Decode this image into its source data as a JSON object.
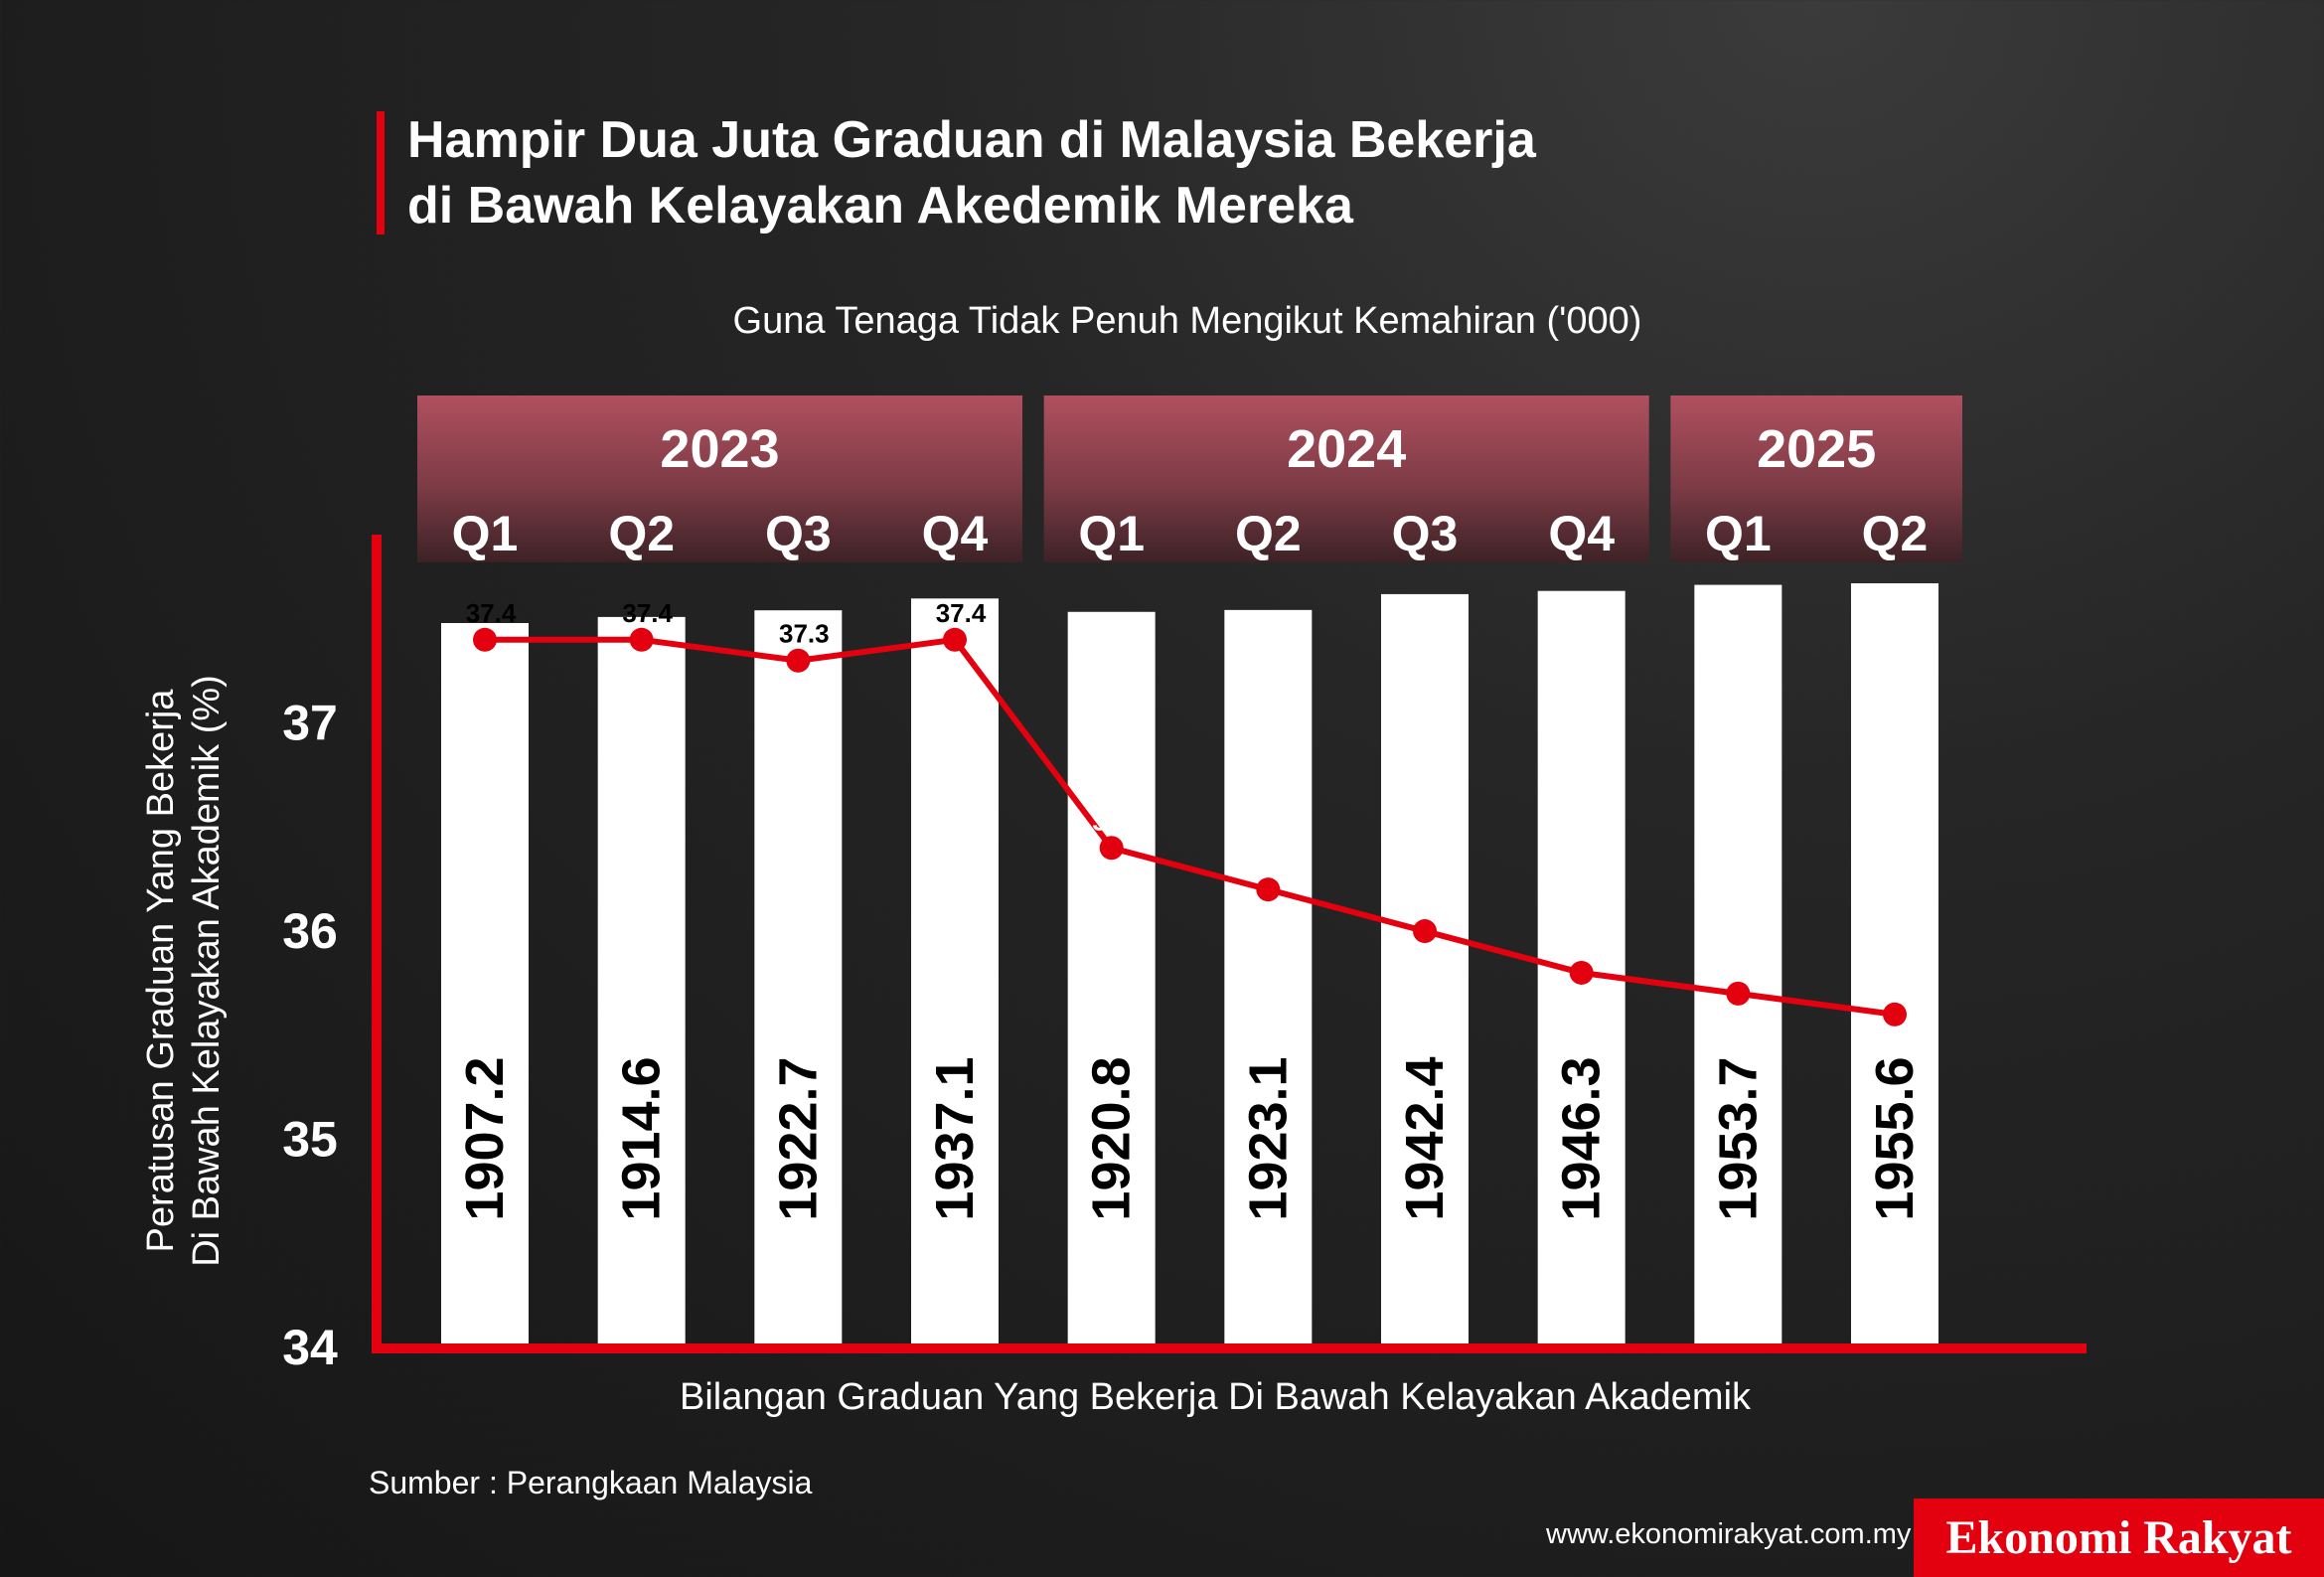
{
  "title": {
    "line1": "Hampir Dua Juta Graduan di Malaysia Bekerja",
    "line2": "di Bawah Kelayakan Akedemik Mereka"
  },
  "source": "Sumber : Perangkaan Malaysia",
  "website": "www.ekonomirakyat.com.my",
  "brand": "Ekonomi Rakyat",
  "colors": {
    "accent": "#e3000f",
    "bar": "#ffffff",
    "header": "#b0505f",
    "background": "#1c1c1c"
  },
  "chart_data": {
    "type": "bar+line",
    "title": "Guna Tenaga Tidak Penuh Mengikut Kemahiran ('000)",
    "xlabel": "Bilangan Graduan Yang Bekerja Di Bawah Kelayakan Akademik",
    "ylabel": [
      "Peratusan Graduan Yang Bekerja",
      "Di Bawah Kelayakan Akademik (%)"
    ],
    "ylim": [
      34,
      37.8
    ],
    "yticks": [
      "34",
      "35",
      "36",
      "37"
    ],
    "years": [
      {
        "label": "2023",
        "quarters": 4
      },
      {
        "label": "2024",
        "quarters": 4
      },
      {
        "label": "2025",
        "quarters": 2
      }
    ],
    "categories": [
      "Q1",
      "Q2",
      "Q3",
      "Q4",
      "Q1",
      "Q2",
      "Q3",
      "Q4",
      "Q1",
      "Q2"
    ],
    "series": [
      {
        "type": "bar",
        "values": [
          1907.2,
          1914.6,
          1922.7,
          1937.1,
          1920.8,
          1923.1,
          1942.4,
          1946.3,
          1953.7,
          1955.6
        ]
      },
      {
        "type": "line",
        "values": [
          37.4,
          37.4,
          37.3,
          37.4,
          36.4,
          36.2,
          36,
          35.8,
          35.7,
          35.6
        ]
      }
    ]
  }
}
